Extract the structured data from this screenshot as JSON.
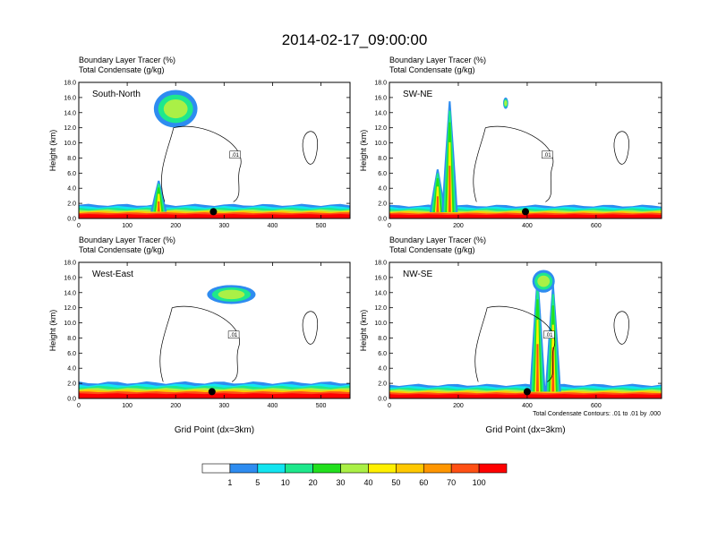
{
  "figure": {
    "title": "2014-02-17_09:00:00",
    "contour_info": "Total Condensate Contours: .01 to .01 by .000",
    "contour_label": ".01"
  },
  "chart_data": [
    {
      "type": "heatmap",
      "panel_title": "South-North",
      "header_line1": "Boundary Layer Tracer    (%)",
      "header_line2": "Total Condensate    (g/kg)",
      "ylabel": "Height (km)",
      "xlabel": "",
      "xlim": [
        0,
        560
      ],
      "ylim": [
        0,
        18
      ],
      "xticks": [
        "0",
        "100",
        "200",
        "300",
        "400",
        "500"
      ],
      "xtick_values": [
        0,
        100,
        200,
        300,
        400,
        500
      ],
      "yticks": [
        "0.0",
        "2.0",
        "4.0",
        "6.0",
        "8.0",
        "10.0",
        "12.0",
        "14.0",
        "16.0",
        "18.0"
      ],
      "marker_x": 278,
      "boundary_layer_top_km": 1.8,
      "plumes": [
        {
          "x": 165,
          "top_km": 5.0
        }
      ],
      "anvils": [
        {
          "x1": 155,
          "x2": 245,
          "y1": 12.0,
          "y2": 17.0
        }
      ]
    },
    {
      "type": "heatmap",
      "panel_title": "SW-NE",
      "header_line1": "Boundary Layer Tracer    (%)",
      "header_line2": "Total Condensate    (g/kg)",
      "ylabel": "Height (km)",
      "xlabel": "",
      "xlim": [
        0,
        790
      ],
      "ylim": [
        0,
        18
      ],
      "xticks": [
        "0",
        "200",
        "400",
        "600"
      ],
      "xtick_values": [
        0,
        200,
        400,
        600
      ],
      "yticks": [
        "0.0",
        "2.0",
        "4.0",
        "6.0",
        "8.0",
        "10.0",
        "12.0",
        "14.0",
        "16.0",
        "18.0"
      ],
      "marker_x": 395,
      "boundary_layer_top_km": 1.7,
      "plumes": [
        {
          "x": 140,
          "top_km": 6.5
        },
        {
          "x": 175,
          "top_km": 15.5
        }
      ],
      "anvils": [
        {
          "x1": 330,
          "x2": 345,
          "y1": 14.5,
          "y2": 16.0
        }
      ]
    },
    {
      "type": "heatmap",
      "panel_title": "West-East",
      "header_line1": "Boundary Layer Tracer    (%)",
      "header_line2": "Total Condensate    (g/kg)",
      "ylabel": "Height (km)",
      "xlabel": "Grid Point (dx=3km)",
      "xlim": [
        0,
        560
      ],
      "ylim": [
        0,
        18
      ],
      "xticks": [
        "0",
        "100",
        "200",
        "300",
        "400",
        "500"
      ],
      "xtick_values": [
        0,
        100,
        200,
        300,
        400,
        500
      ],
      "yticks": [
        "0.0",
        "2.0",
        "4.0",
        "6.0",
        "8.0",
        "10.0",
        "12.0",
        "14.0",
        "16.0",
        "18.0"
      ],
      "marker_x": 275,
      "boundary_layer_top_km": 2.1,
      "plumes": [],
      "anvils": [
        {
          "x1": 265,
          "x2": 365,
          "y1": 12.5,
          "y2": 15.0
        }
      ]
    },
    {
      "type": "heatmap",
      "panel_title": "NW-SE",
      "header_line1": "Boundary Layer Tracer    (%)",
      "header_line2": "Total Condensate    (g/kg)",
      "ylabel": "Height (km)",
      "xlabel": "Grid Point (dx=3km)",
      "xlim": [
        0,
        790
      ],
      "ylim": [
        0,
        18
      ],
      "xticks": [
        "0",
        "200",
        "400",
        "600"
      ],
      "xtick_values": [
        0,
        200,
        400,
        600
      ],
      "yticks": [
        "0.0",
        "2.0",
        "4.0",
        "6.0",
        "8.0",
        "10.0",
        "12.0",
        "14.0",
        "16.0",
        "18.0"
      ],
      "marker_x": 400,
      "boundary_layer_top_km": 1.8,
      "plumes": [
        {
          "x": 430,
          "top_km": 16.0
        },
        {
          "x": 475,
          "top_km": 15.0
        }
      ],
      "anvils": [
        {
          "x1": 415,
          "x2": 480,
          "y1": 14.0,
          "y2": 17.0
        }
      ]
    }
  ],
  "colorbar": {
    "labels": [
      "1",
      "5",
      "10",
      "20",
      "30",
      "40",
      "50",
      "60",
      "70",
      "100"
    ],
    "colors": [
      "#ffffff",
      "#2e8cf0",
      "#12e4f0",
      "#1ee88c",
      "#22e01e",
      "#aaf046",
      "#fff000",
      "#ffc800",
      "#ff9600",
      "#ff5014",
      "#ff0000"
    ]
  }
}
